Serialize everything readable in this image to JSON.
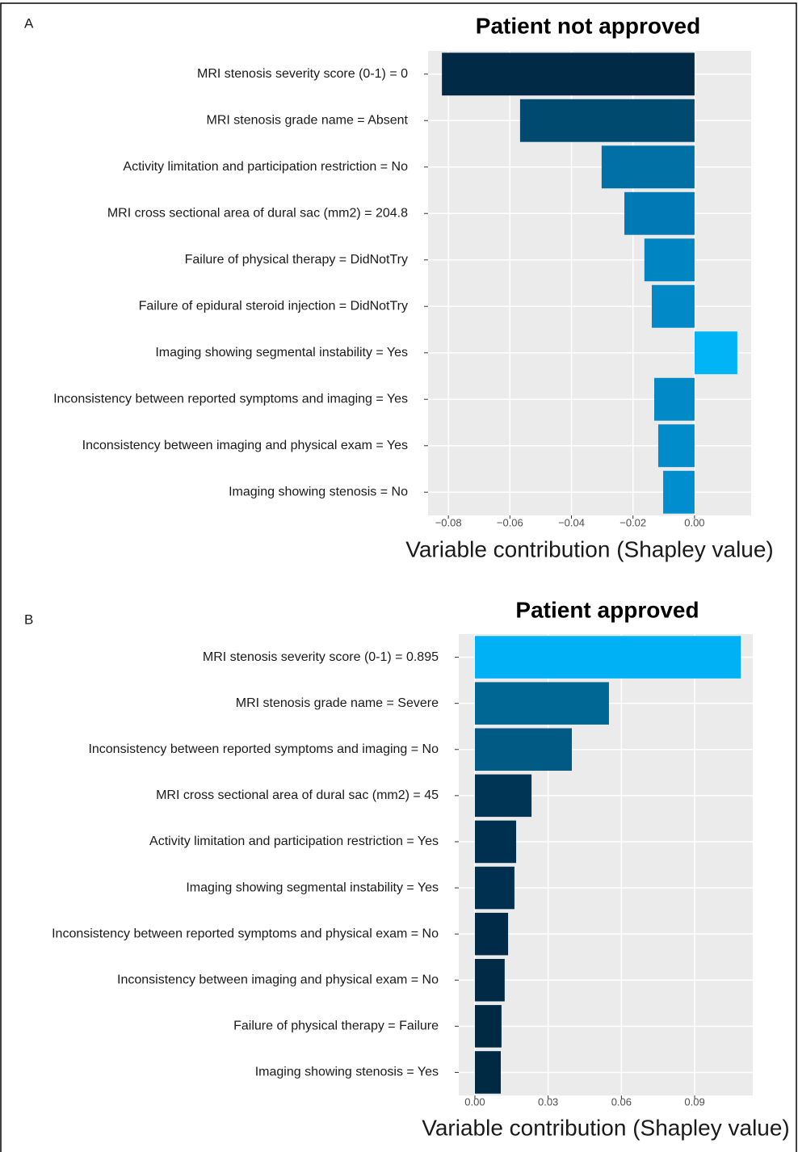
{
  "chart_data": [
    {
      "type": "bar",
      "orientation": "horizontal",
      "panel": "A",
      "title": "Patient not approved",
      "x_label": "Variable contribution (Shapley value)",
      "categories": [
        "MRI stenosis severity score (0-1) = 0",
        "MRI stenosis grade name = Absent",
        "Activity limitation and participation restriction = No",
        "MRI cross sectional area of dural sac (mm2) = 204.8",
        "Failure of physical therapy = DidNotTry",
        "Failure of epidural steroid injection = DidNotTry",
        "Imaging showing segmental instability = Yes",
        "Inconsistency between reported symptoms and imaging = Yes",
        "Inconsistency between imaging and physical exam = Yes",
        "Imaging showing stenosis = No"
      ],
      "values": [
        -0.0821,
        -0.0567,
        -0.0302,
        -0.0228,
        -0.0163,
        -0.0139,
        0.0139,
        -0.0131,
        -0.0118,
        -0.0102
      ],
      "colors": [
        "#002a45",
        "#004a70",
        "#0070a5",
        "#0079b5",
        "#0085c3",
        "#0088c7",
        "#00b4f5",
        "#0088c7",
        "#008bcb",
        "#008ecf"
      ],
      "xlim": [
        -0.0866,
        0.0184
      ],
      "xticks": [
        {
          "value": -0.08,
          "label": "−0.08"
        },
        {
          "value": -0.06,
          "label": "−0.06"
        },
        {
          "value": -0.04,
          "label": "−0.04"
        },
        {
          "value": -0.02,
          "label": "−0.02"
        },
        {
          "value": 0,
          "label": "0.00"
        }
      ],
      "grid": true
    },
    {
      "type": "bar",
      "orientation": "horizontal",
      "panel": "B",
      "title": "Patient approved",
      "x_label": "Variable contribution (Shapley value)",
      "categories": [
        "MRI stenosis severity score (0-1) = 0.895",
        "MRI stenosis grade name = Severe",
        "Inconsistency between reported symptoms and imaging = No",
        "MRI cross sectional area of dural sac (mm2) = 45",
        "Activity limitation and participation restriction = Yes",
        "Imaging showing segmental instability = Yes",
        "Inconsistency between reported symptoms and physical exam = No",
        "Inconsistency between imaging and physical exam = No",
        "Failure of physical therapy = Failure",
        "Imaging showing stenosis = Yes"
      ],
      "values": [
        0.1089,
        0.0549,
        0.0397,
        0.0232,
        0.0169,
        0.0162,
        0.0136,
        0.0122,
        0.0109,
        0.0106
      ],
      "colors": [
        "#00b2f5",
        "#006794",
        "#005a84",
        "#003556",
        "#003050",
        "#00304f",
        "#002b48",
        "#002a46",
        "#002944",
        "#002944"
      ],
      "xlim": [
        -0.0066,
        0.1138
      ],
      "xticks": [
        {
          "value": 0,
          "label": "0.00"
        },
        {
          "value": 0.03,
          "label": "0.03"
        },
        {
          "value": 0.06,
          "label": "0.06"
        },
        {
          "value": 0.09,
          "label": "0.09"
        }
      ],
      "grid": true
    }
  ]
}
